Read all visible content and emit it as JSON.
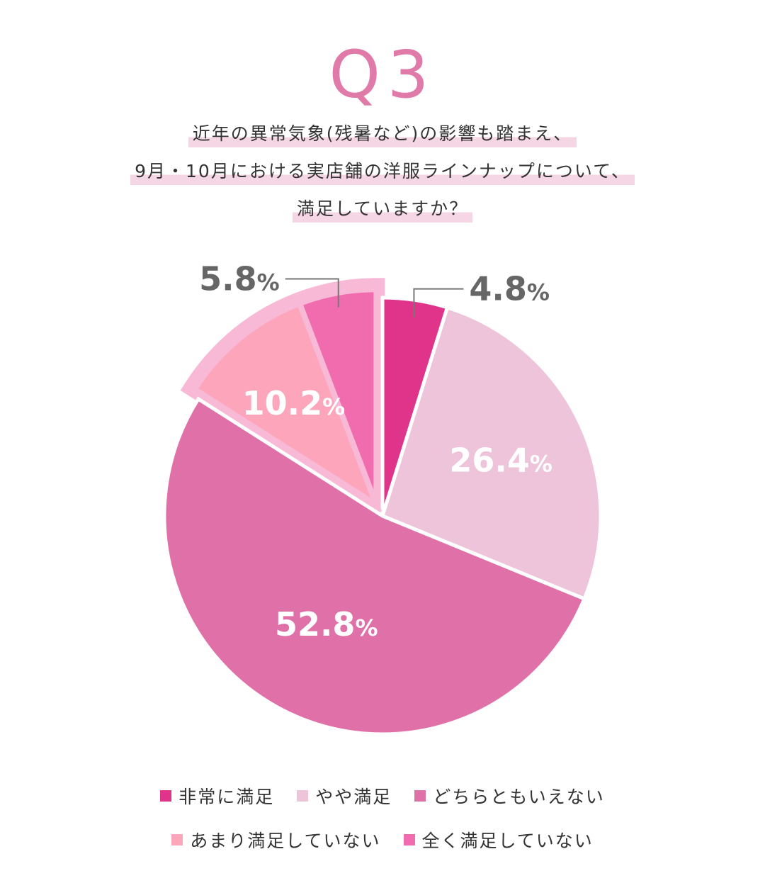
{
  "heading": "Q3",
  "question_lines": [
    "近年の異常気象(残暑など)の影響も踏まえ、",
    "9月・10月における実店舗の洋服ラインナップについて、",
    "満足していますか？"
  ],
  "colors": {
    "heading": "#e07aa9",
    "highlight": "#f5d6e4",
    "explode_outline": "#f8b9d6",
    "leader_line": "#777777"
  },
  "chart_data": {
    "type": "pie",
    "title": "",
    "start_angle_deg": 0,
    "direction": "clockwise",
    "slices": [
      {
        "label": "非常に満足",
        "value": 4.8,
        "display": "4.8",
        "color": "#e0338a",
        "label_placement": "outside-right",
        "exploded": false
      },
      {
        "label": "やや満足",
        "value": 26.4,
        "display": "26.4",
        "color": "#eec4da",
        "label_placement": "inside",
        "exploded": false
      },
      {
        "label": "どちらともいえない",
        "value": 52.8,
        "display": "52.8",
        "color": "#df71a8",
        "label_placement": "inside",
        "exploded": false
      },
      {
        "label": "あまり満足していない",
        "value": 10.2,
        "display": "10.2",
        "color": "#fda6bb",
        "label_placement": "inside",
        "exploded": true
      },
      {
        "label": "全く満足していない",
        "value": 5.8,
        "display": "5.8",
        "color": "#f06cae",
        "label_placement": "outside-left",
        "exploded": true
      }
    ],
    "unit": "%",
    "legend_position": "bottom"
  },
  "legend_rows": [
    [
      0,
      1,
      2
    ],
    [
      3,
      4
    ]
  ]
}
